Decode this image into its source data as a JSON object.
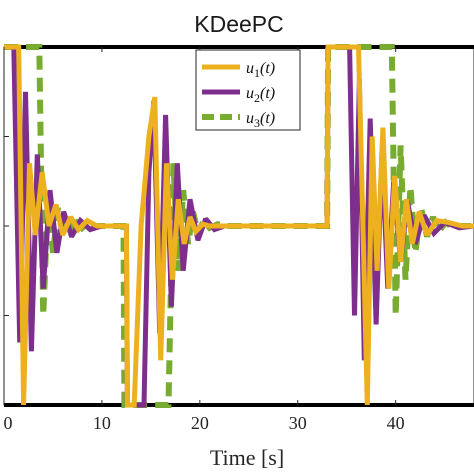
{
  "chart_data": {
    "type": "line",
    "title": "KDeePC",
    "xlabel": "Time [s]",
    "ylabel": "",
    "xlim": [
      0,
      48
    ],
    "ylim": [
      -1.0,
      1.0
    ],
    "xticks": [
      0,
      10,
      20,
      30,
      40
    ],
    "xtick_labels": [
      "0",
      "10",
      "20",
      "30",
      "40"
    ],
    "yticks": [
      -0.5,
      0,
      0.5
    ],
    "grid": false,
    "legend_position": "top-center",
    "bounds": [
      1.0,
      -1.0
    ],
    "series": [
      {
        "name": "u_1(t)",
        "color": "#EDB120",
        "style": "solid",
        "x": [
          0,
          1.5,
          2.0,
          2.6,
          3.2,
          3.9,
          4.6,
          5.3,
          6.0,
          6.8,
          7.6,
          8.5,
          9.5,
          12.5,
          12.6,
          13.3,
          14.0,
          14.8,
          15.4,
          16.0,
          16.6,
          17.2,
          17.8,
          18.4,
          19.0,
          19.6,
          20.3,
          21.0,
          22.0,
          33.0,
          33.1,
          36.2,
          36.7,
          37.1,
          37.6,
          38.1,
          38.7,
          39.3,
          39.9,
          40.5,
          41.1,
          41.7,
          42.4,
          43.2,
          44.2,
          45.4,
          46.8,
          48
        ],
        "y": [
          1.0,
          1.0,
          -1.0,
          0.35,
          -0.05,
          0.3,
          0.0,
          0.12,
          -0.05,
          0.05,
          -0.02,
          0.03,
          0.0,
          0.0,
          -1.0,
          -1.0,
          0.0,
          0.5,
          0.72,
          -0.75,
          0.35,
          -0.3,
          0.15,
          -0.1,
          0.05,
          -0.03,
          0.01,
          0.0,
          0.0,
          0.0,
          1.0,
          1.0,
          -0.1,
          -1.0,
          0.5,
          -0.25,
          0.55,
          -0.35,
          0.28,
          -0.2,
          0.15,
          -0.1,
          0.08,
          -0.05,
          0.03,
          0.02,
          0.0,
          0.0
        ]
      },
      {
        "name": "u_2(t)",
        "color": "#7E2F8E",
        "style": "solid",
        "x": [
          0,
          1.0,
          1.6,
          2.2,
          2.8,
          3.4,
          4.0,
          4.7,
          5.4,
          6.1,
          6.9,
          7.8,
          8.8,
          10.0,
          12.5,
          12.6,
          14.3,
          14.8,
          15.3,
          15.9,
          16.5,
          17.1,
          17.7,
          18.3,
          19.0,
          19.8,
          20.6,
          21.5,
          22.5,
          33.0,
          33.1,
          35.3,
          35.8,
          36.3,
          36.8,
          37.4,
          38.0,
          38.6,
          39.2,
          39.8,
          40.5,
          41.2,
          42.0,
          42.9,
          43.9,
          45.0,
          46.5,
          48
        ],
        "y": [
          1.0,
          1.0,
          -0.65,
          0.75,
          -0.7,
          0.4,
          -0.35,
          0.2,
          -0.15,
          0.08,
          -0.06,
          0.03,
          -0.02,
          0.0,
          0.0,
          -1.0,
          -1.0,
          0.3,
          0.7,
          -0.6,
          0.62,
          -0.45,
          0.35,
          -0.25,
          0.15,
          -0.08,
          0.04,
          -0.02,
          0.0,
          0.0,
          1.0,
          1.0,
          -0.5,
          0.82,
          -0.75,
          0.6,
          -0.55,
          0.42,
          -0.35,
          0.25,
          -0.2,
          0.14,
          -0.1,
          0.06,
          -0.04,
          0.02,
          -0.01,
          0.0
        ]
      },
      {
        "name": "u_3(t)",
        "color": "#77AC30",
        "style": "dashed",
        "x": [
          0,
          3.6,
          4.0,
          4.5,
          5.0,
          5.5,
          6.0,
          6.5,
          7.0,
          7.5,
          8.0,
          8.6,
          9.3,
          10.0,
          12.2,
          12.3,
          16.8,
          17.3,
          17.8,
          18.3,
          18.8,
          19.3,
          19.8,
          20.4,
          21.0,
          21.8,
          22.8,
          33.0,
          33.1,
          39.6,
          40.0,
          40.5,
          41.0,
          41.5,
          42.0,
          42.6,
          43.2,
          43.8,
          44.4,
          45.1,
          45.9,
          46.8,
          48
        ],
        "y": [
          1.0,
          1.0,
          -0.5,
          0.15,
          -0.15,
          0.1,
          -0.05,
          0.06,
          -0.03,
          0.03,
          -0.01,
          0.02,
          0.0,
          0.0,
          0.0,
          -1.0,
          -1.0,
          0.35,
          -0.25,
          0.2,
          -0.1,
          0.08,
          -0.04,
          0.03,
          -0.01,
          0.01,
          0.0,
          0.0,
          1.0,
          1.0,
          -0.5,
          0.45,
          -0.3,
          0.22,
          -0.15,
          0.1,
          -0.06,
          0.05,
          -0.03,
          0.02,
          -0.01,
          0.0,
          0.0
        ]
      }
    ]
  }
}
